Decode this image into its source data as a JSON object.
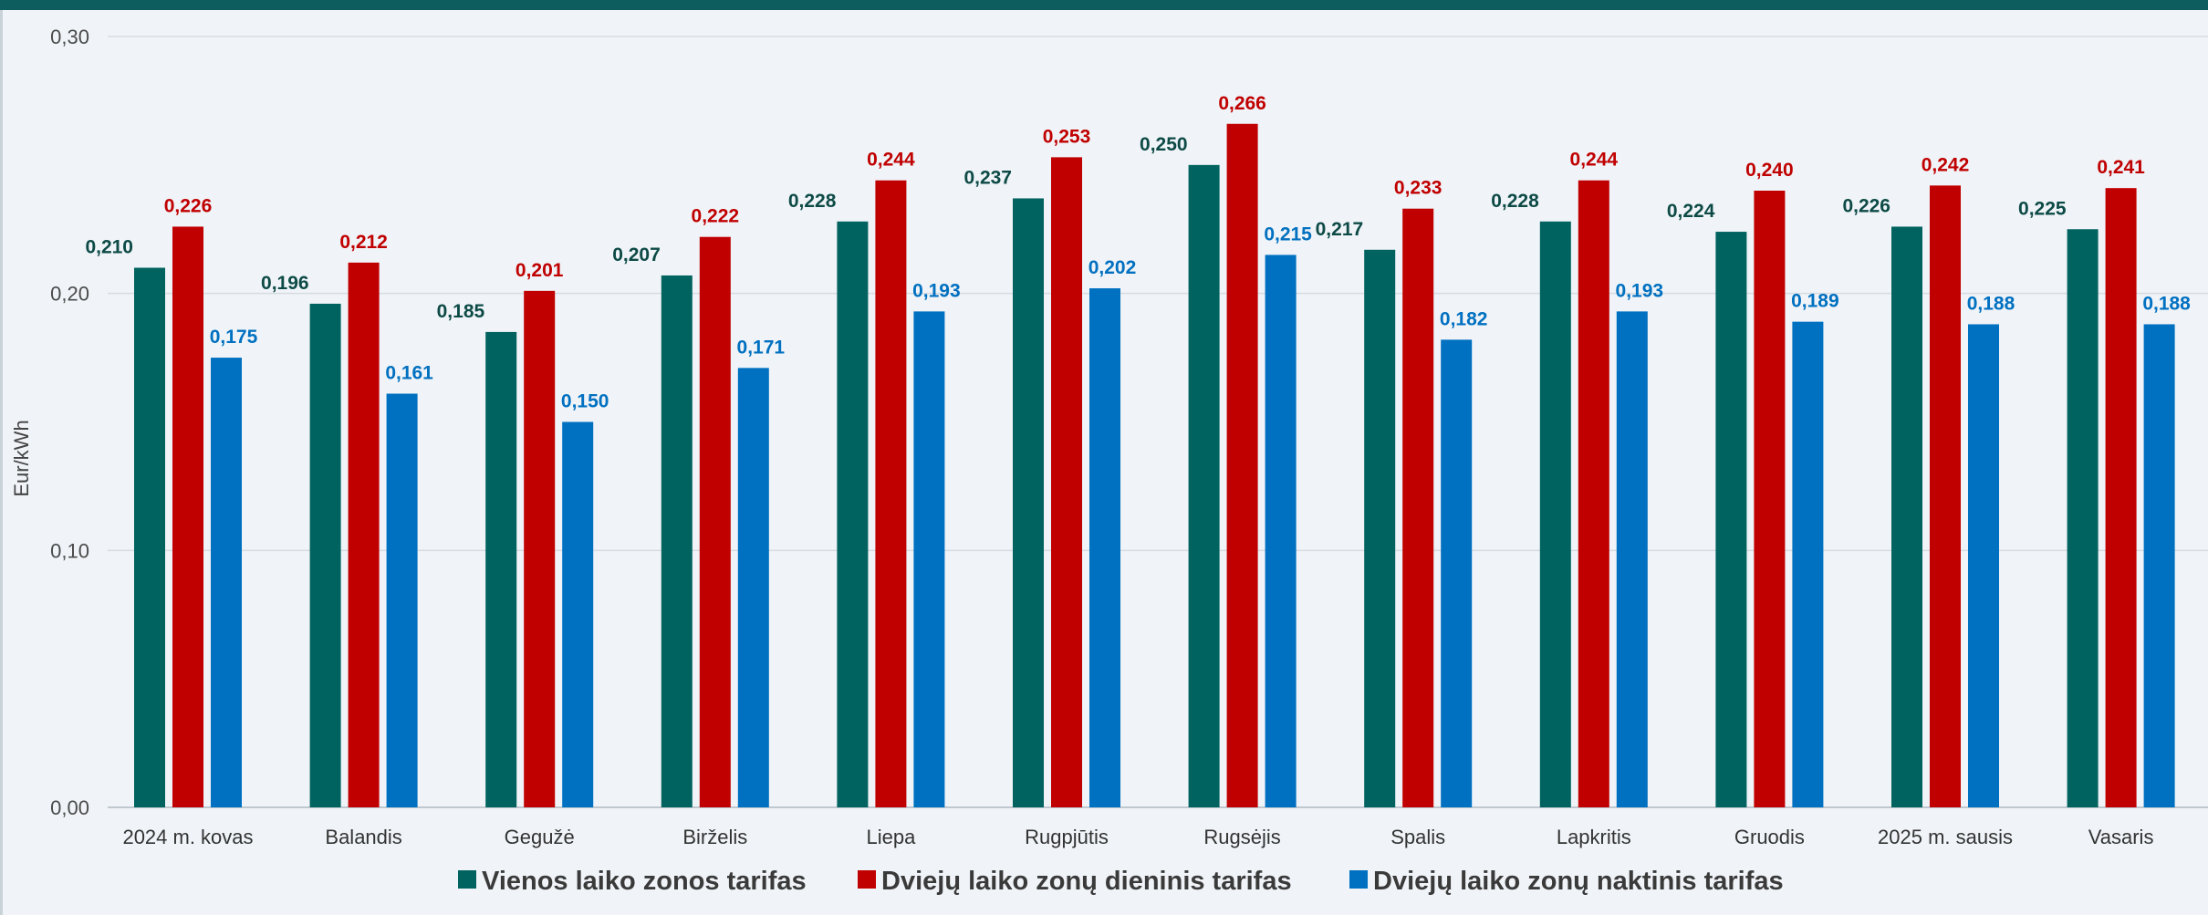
{
  "chart_data": {
    "type": "bar",
    "ylabel": "Eur/kWh",
    "ylim": [
      0,
      0.3
    ],
    "yticks": [
      "0,00",
      "0,10",
      "0,20",
      "0,30"
    ],
    "grid": true,
    "legend_position": "bottom",
    "categories": [
      "2024 m. kovas",
      "Balandis",
      "Gegužė",
      "Birželis",
      "Liepa",
      "Rugpjūtis",
      "Rugsėjis",
      "Spalis",
      "Lapkritis",
      "Gruodis",
      "2025 m. sausis",
      "Vasaris"
    ],
    "series": [
      {
        "name": "Vienos laiko zonos tarifas",
        "color": "#00635f",
        "label_color": "#0d4a46",
        "values": [
          0.21,
          0.196,
          0.185,
          0.207,
          0.228,
          0.237,
          0.25,
          0.217,
          0.228,
          0.224,
          0.226,
          0.225
        ],
        "labels": [
          "0,210",
          "0,196",
          "0,185",
          "0,207",
          "0,228",
          "0,237",
          "0,250",
          "0,217",
          "0,228",
          "0,224",
          "0,226",
          "0,225"
        ]
      },
      {
        "name": "Dviejų laiko zonų dieninis tarifas",
        "color": "#c00000",
        "label_color": "#c00000",
        "values": [
          0.226,
          0.212,
          0.201,
          0.222,
          0.244,
          0.253,
          0.266,
          0.233,
          0.244,
          0.24,
          0.242,
          0.241
        ],
        "labels": [
          "0,226",
          "0,212",
          "0,201",
          "0,222",
          "0,244",
          "0,253",
          "0,266",
          "0,233",
          "0,244",
          "0,240",
          "0,242",
          "0,241"
        ]
      },
      {
        "name": "Dviejų laiko zonų naktinis tarifas",
        "color": "#0070c0",
        "label_color": "#0070c0",
        "values": [
          0.175,
          0.161,
          0.15,
          0.171,
          0.193,
          0.202,
          0.215,
          0.182,
          0.193,
          0.189,
          0.188,
          0.188
        ],
        "labels": [
          "0,175",
          "0,161",
          "0,150",
          "0,171",
          "0,193",
          "0,202",
          "0,215",
          "0,182",
          "0,193",
          "0,189",
          "0,188",
          "0,188"
        ]
      }
    ]
  }
}
